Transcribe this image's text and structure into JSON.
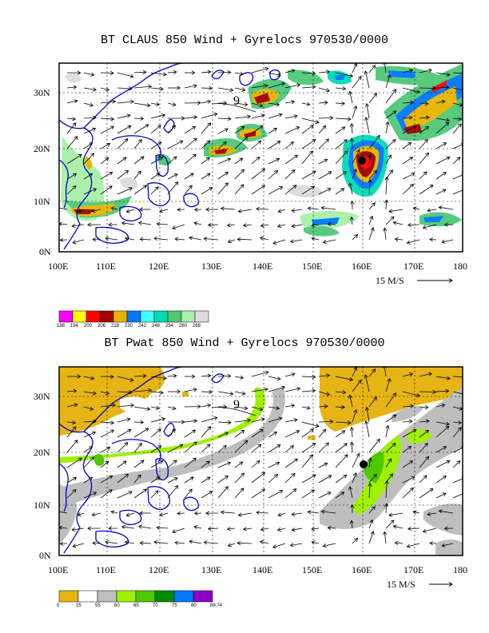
{
  "panel1": {
    "title": "BT CLAUS 850 Wind + Gyrelocs 970530/0000",
    "lat_labels": [
      "30N",
      "20N",
      "10N",
      "0N"
    ],
    "lon_labels": [
      "100E",
      "110E",
      "120E",
      "130E",
      "140E",
      "150E",
      "160E",
      "170E",
      "180"
    ],
    "wind_ref": "15 M/S",
    "gyre_label": "9",
    "colorbar": {
      "ticks": [
        "188",
        "194",
        "200",
        "206",
        "218",
        "230",
        "242",
        "248",
        "254",
        "260",
        "268"
      ],
      "colors": [
        "#ff00ff",
        "#ffff00",
        "#ff0000",
        "#a00000",
        "#e6b400",
        "#0078ff",
        "#40ffff",
        "#00dcb0",
        "#50c878",
        "#a8f0a8",
        "#dcdcdc"
      ]
    }
  },
  "panel2": {
    "title": "BT Pwat 850 Wind + Gyrelocs 970530/0000",
    "lat_labels": [
      "30N",
      "20N",
      "10N",
      "0N"
    ],
    "lon_labels": [
      "100E",
      "110E",
      "120E",
      "130E",
      "140E",
      "150E",
      "160E",
      "170E",
      "180"
    ],
    "wind_ref": "15 M/S",
    "gyre_label": "9",
    "colorbar": {
      "ticks": [
        "0",
        "25",
        "55",
        "60",
        "65",
        "70",
        "75",
        "80",
        "89.74"
      ],
      "colors": [
        "#e6b414",
        "#ffffff",
        "#bebebe",
        "#a0f000",
        "#50c800",
        "#008c00",
        "#0078ff",
        "#8c00c8"
      ]
    }
  }
}
